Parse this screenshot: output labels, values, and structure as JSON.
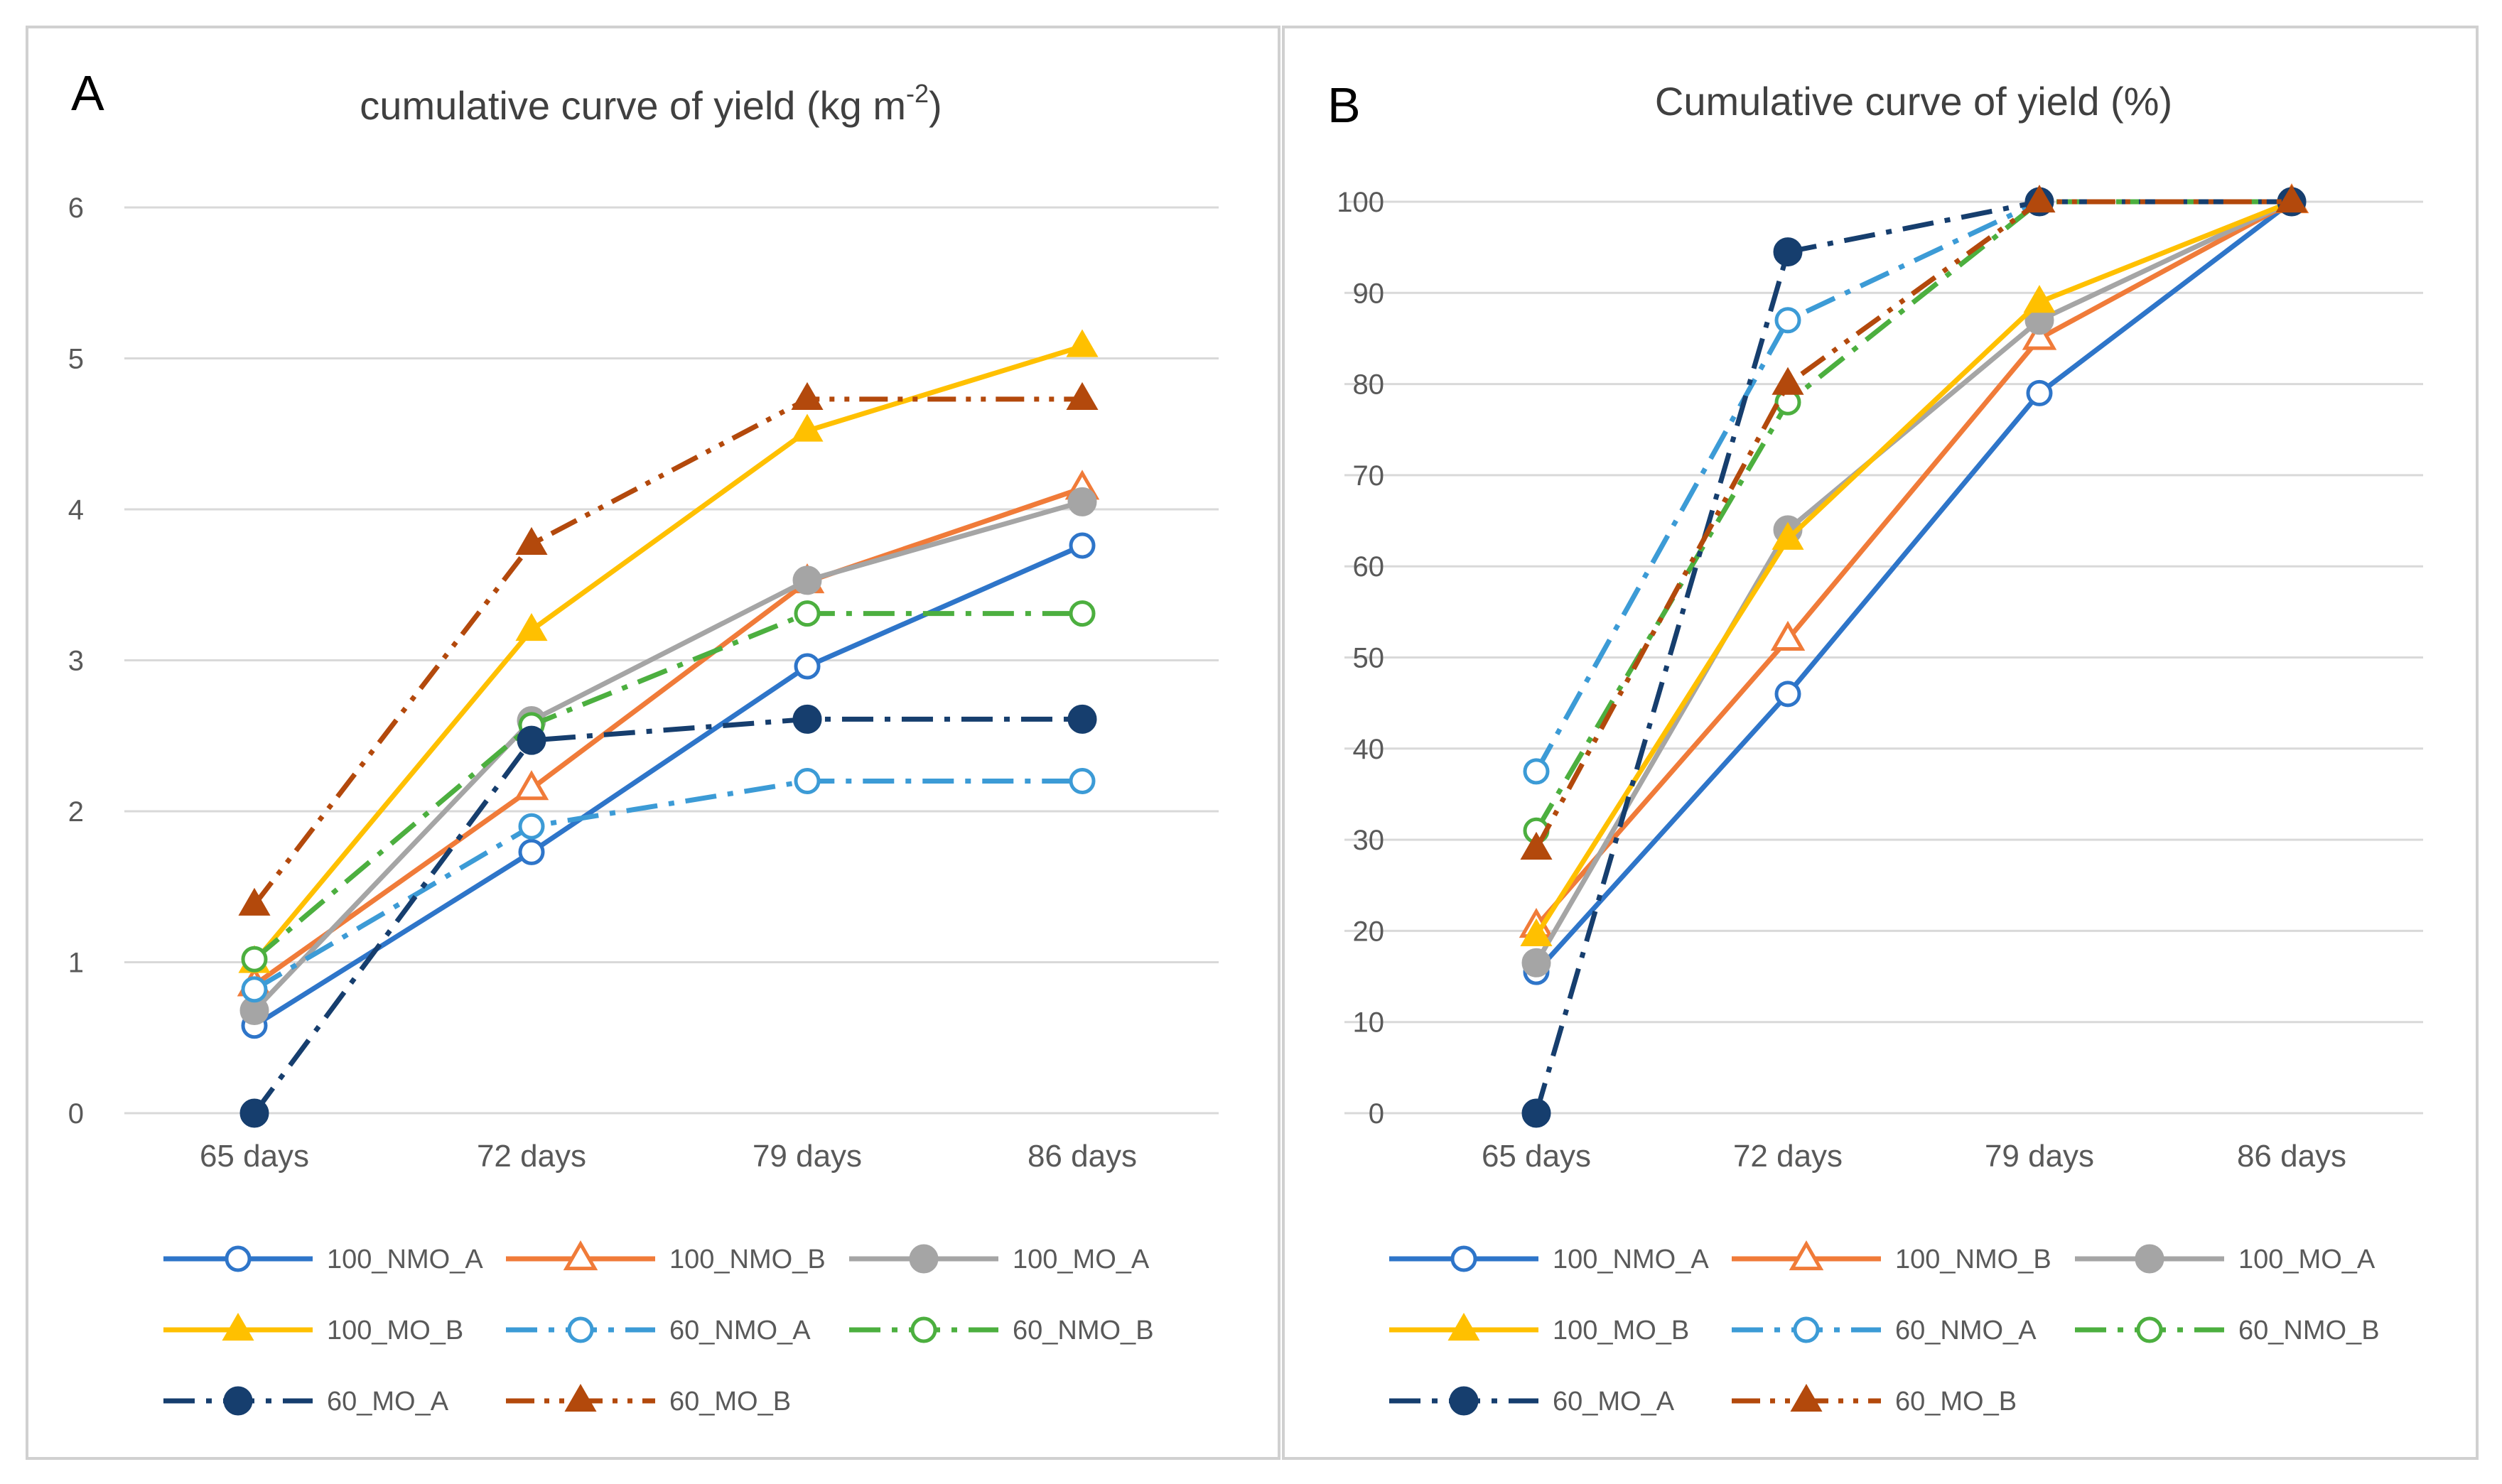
{
  "chart_data": [
    {
      "panel_label": "A",
      "type": "line",
      "title_main": "cumulative curve of yield (kg m",
      "title_sup": "-2",
      "title_end": ")",
      "categories": [
        "65 days",
        "72 days",
        "79 days",
        "86 days"
      ],
      "ylim": [
        0,
        6
      ],
      "yticks": [
        0,
        1,
        2,
        3,
        4,
        5,
        6
      ],
      "grid": true,
      "legend_placement": "bottom",
      "series": [
        {
          "name": "100_NMO_A",
          "values": [
            0.58,
            1.73,
            2.96,
            3.76
          ],
          "color": "#2E75C9",
          "dash": "solid",
          "marker": "circle-open"
        },
        {
          "name": "100_NMO_B",
          "values": [
            0.85,
            2.15,
            3.52,
            4.14
          ],
          "color": "#F07B39",
          "dash": "solid",
          "marker": "triangle-open"
        },
        {
          "name": "100_MO_A",
          "values": [
            0.68,
            2.6,
            3.53,
            4.05
          ],
          "color": "#A5A5A5",
          "dash": "solid",
          "marker": "circle-filled"
        },
        {
          "name": "100_MO_B",
          "values": [
            1.0,
            3.2,
            4.52,
            5.08
          ],
          "color": "#FFC000",
          "dash": "solid",
          "marker": "triangle-filled"
        },
        {
          "name": "60_NMO_A",
          "values": [
            0.82,
            1.9,
            2.2,
            2.2
          ],
          "color": "#3C9BD6",
          "dash": "dashdot",
          "marker": "circle-open"
        },
        {
          "name": "60_NMO_B",
          "values": [
            1.02,
            2.57,
            3.31,
            3.31
          ],
          "color": "#4CAF3F",
          "dash": "dashdot",
          "marker": "circle-open"
        },
        {
          "name": "60_MO_A",
          "values": [
            0.0,
            2.47,
            2.61,
            2.61
          ],
          "color": "#163E6E",
          "dash": "dashdot",
          "marker": "circle-filled"
        },
        {
          "name": "60_MO_B",
          "values": [
            1.38,
            3.77,
            4.73,
            4.73
          ],
          "color": "#B3490C",
          "dash": "dashdotdot",
          "marker": "triangle-filled"
        }
      ]
    },
    {
      "panel_label": "B",
      "type": "line",
      "title_main": "Cumulative curve of yield (%)",
      "title_sup": "",
      "title_end": "",
      "categories": [
        "65 days",
        "72 days",
        "79 days",
        "86 days"
      ],
      "ylim": [
        0,
        100
      ],
      "yticks": [
        0,
        10,
        20,
        30,
        40,
        50,
        60,
        70,
        80,
        90,
        100
      ],
      "grid": true,
      "legend_placement": "bottom",
      "series": [
        {
          "name": "100_NMO_A",
          "values": [
            15.5,
            46,
            79,
            100
          ],
          "color": "#2E75C9",
          "dash": "solid",
          "marker": "circle-open"
        },
        {
          "name": "100_NMO_B",
          "values": [
            20.5,
            52,
            85,
            100
          ],
          "color": "#F07B39",
          "dash": "solid",
          "marker": "triangle-open"
        },
        {
          "name": "100_MO_A",
          "values": [
            16.5,
            64,
            87,
            100
          ],
          "color": "#A5A5A5",
          "dash": "solid",
          "marker": "circle-filled"
        },
        {
          "name": "100_MO_B",
          "values": [
            19.5,
            63,
            89,
            100
          ],
          "color": "#FFC000",
          "dash": "solid",
          "marker": "triangle-filled"
        },
        {
          "name": "60_NMO_A",
          "values": [
            37.5,
            87,
            100,
            100
          ],
          "color": "#3C9BD6",
          "dash": "dashdot",
          "marker": "circle-open"
        },
        {
          "name": "60_NMO_B",
          "values": [
            31,
            78,
            100,
            100
          ],
          "color": "#4CAF3F",
          "dash": "dashdot",
          "marker": "circle-open"
        },
        {
          "name": "60_MO_A",
          "values": [
            0,
            94.5,
            100,
            100
          ],
          "color": "#163E6E",
          "dash": "dashdot",
          "marker": "circle-filled"
        },
        {
          "name": "60_MO_B",
          "values": [
            29,
            80,
            100,
            100
          ],
          "color": "#B3490C",
          "dash": "dashdotdot",
          "marker": "triangle-filled"
        }
      ]
    }
  ]
}
